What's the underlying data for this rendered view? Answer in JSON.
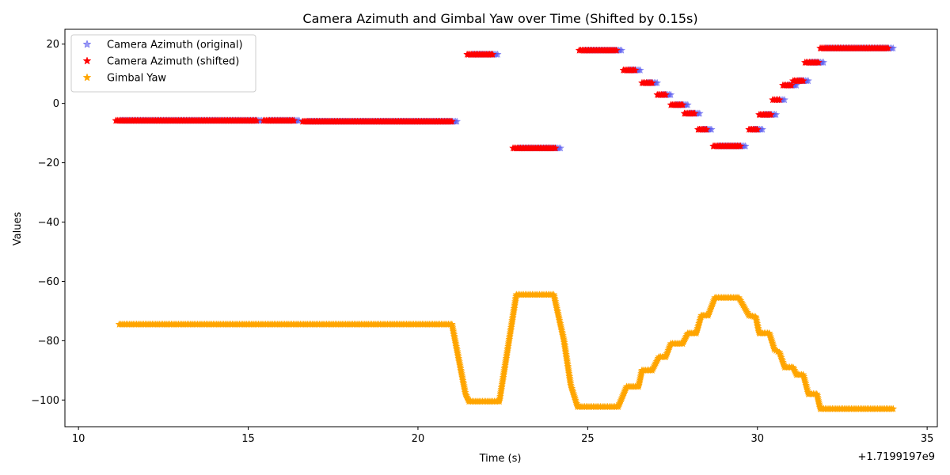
{
  "chart_data": {
    "type": "scatter",
    "title": "Camera Azimuth and Gimbal Yaw over Time (Shifted by 0.15s)",
    "xlabel": "Time (s)",
    "ylabel": "Values",
    "x_offset_label": "+1.7199197e9",
    "xlim": [
      9.6,
      35.3
    ],
    "ylim": [
      -109,
      25
    ],
    "xticks": [
      10,
      15,
      20,
      25,
      30,
      35
    ],
    "yticks": [
      20,
      0,
      -20,
      -40,
      -60,
      -80,
      -100
    ],
    "xtick_labels": [
      "10",
      "15",
      "20",
      "25",
      "30",
      "35"
    ],
    "ytick_labels": [
      "20",
      "0",
      "−20",
      "−40",
      "−60",
      "−80",
      "−100"
    ],
    "grid": false,
    "legend_position": "top-left",
    "marker": "star",
    "series": [
      {
        "name": "Camera Azimuth (original)",
        "color": "#5555ee",
        "segments": [
          {
            "x": [
              11.25,
              15.4
            ],
            "y": -5.8
          },
          {
            "x": [
              15.6,
              16.5
            ],
            "y": -5.8
          },
          {
            "x": [
              16.75,
              21.15
            ],
            "y": -6.1
          },
          {
            "x": [
              21.6,
              22.35
            ],
            "y": 16.5
          },
          {
            "x": [
              22.95,
              24.2
            ],
            "y": -15.1
          },
          {
            "x": [
              24.9,
              26.0
            ],
            "y": 17.9
          },
          {
            "x": [
              26.2,
              26.55
            ],
            "y": 11.2
          },
          {
            "x": [
              26.75,
              27.05
            ],
            "y": 6.9
          },
          {
            "x": [
              27.2,
              27.45
            ],
            "y": 2.9
          },
          {
            "x": [
              27.6,
              27.95
            ],
            "y": -0.5
          },
          {
            "x": [
              28.0,
              28.3
            ],
            "y": -3.4
          },
          {
            "x": [
              28.4,
              28.65
            ],
            "y": -8.8
          },
          {
            "x": [
              28.85,
              29.65
            ],
            "y": -14.4
          },
          {
            "x": [
              29.9,
              30.15
            ],
            "y": -8.8
          },
          {
            "x": [
              30.2,
              30.55
            ],
            "y": -3.8
          },
          {
            "x": [
              30.6,
              30.8
            ],
            "y": 1.2
          },
          {
            "x": [
              30.9,
              31.15
            ],
            "y": 6.1
          },
          {
            "x": [
              31.2,
              31.5
            ],
            "y": 7.6
          },
          {
            "x": [
              31.55,
              31.95
            ],
            "y": 13.8
          },
          {
            "x": [
              32.0,
              34.0
            ],
            "y": 18.6
          }
        ]
      },
      {
        "name": "Camera Azimuth (shifted)",
        "color": "#ff0000",
        "segments": [
          {
            "x": [
              11.1,
              15.25
            ],
            "y": -5.8
          },
          {
            "x": [
              15.45,
              16.35
            ],
            "y": -5.8
          },
          {
            "x": [
              16.6,
              21.0
            ],
            "y": -6.1
          },
          {
            "x": [
              21.45,
              22.2
            ],
            "y": 16.5
          },
          {
            "x": [
              22.8,
              24.05
            ],
            "y": -15.1
          },
          {
            "x": [
              24.75,
              25.85
            ],
            "y": 17.9
          },
          {
            "x": [
              26.05,
              26.4
            ],
            "y": 11.2
          },
          {
            "x": [
              26.6,
              26.9
            ],
            "y": 6.9
          },
          {
            "x": [
              27.05,
              27.3
            ],
            "y": 2.9
          },
          {
            "x": [
              27.45,
              27.8
            ],
            "y": -0.5
          },
          {
            "x": [
              27.85,
              28.15
            ],
            "y": -3.4
          },
          {
            "x": [
              28.25,
              28.5
            ],
            "y": -8.8
          },
          {
            "x": [
              28.7,
              29.5
            ],
            "y": -14.4
          },
          {
            "x": [
              29.75,
              30.0
            ],
            "y": -8.8
          },
          {
            "x": [
              30.05,
              30.4
            ],
            "y": -3.8
          },
          {
            "x": [
              30.45,
              30.65
            ],
            "y": 1.2
          },
          {
            "x": [
              30.75,
              31.0
            ],
            "y": 6.1
          },
          {
            "x": [
              31.05,
              31.35
            ],
            "y": 7.6
          },
          {
            "x": [
              31.4,
              31.8
            ],
            "y": 13.8
          },
          {
            "x": [
              31.85,
              33.85
            ],
            "y": 18.6
          }
        ]
      },
      {
        "name": "Gimbal Yaw",
        "color": "#ffa500",
        "points": [
          [
            11.2,
            -74.5
          ],
          [
            21.0,
            -74.5
          ],
          [
            21.4,
            -98
          ],
          [
            21.5,
            -100.5
          ],
          [
            22.4,
            -100.5
          ],
          [
            22.9,
            -64.5
          ],
          [
            24.0,
            -64.5
          ],
          [
            24.3,
            -80
          ],
          [
            24.5,
            -95
          ],
          [
            24.7,
            -102.3
          ],
          [
            25.9,
            -102.3
          ],
          [
            26.15,
            -95.5
          ],
          [
            26.5,
            -95.5
          ],
          [
            26.6,
            -90
          ],
          [
            26.9,
            -90
          ],
          [
            27.1,
            -85.5
          ],
          [
            27.3,
            -85.5
          ],
          [
            27.45,
            -81
          ],
          [
            27.8,
            -81
          ],
          [
            27.95,
            -77.5
          ],
          [
            28.2,
            -77.5
          ],
          [
            28.35,
            -71.5
          ],
          [
            28.55,
            -71.5
          ],
          [
            28.75,
            -65.5
          ],
          [
            29.45,
            -65.5
          ],
          [
            29.75,
            -71.5
          ],
          [
            29.95,
            -72
          ],
          [
            30.05,
            -77.5
          ],
          [
            30.35,
            -77.5
          ],
          [
            30.5,
            -83
          ],
          [
            30.65,
            -84
          ],
          [
            30.8,
            -89
          ],
          [
            31.05,
            -89
          ],
          [
            31.15,
            -91.5
          ],
          [
            31.35,
            -91.5
          ],
          [
            31.5,
            -98
          ],
          [
            31.75,
            -98
          ],
          [
            31.85,
            -103
          ],
          [
            34.0,
            -103
          ]
        ]
      }
    ]
  }
}
